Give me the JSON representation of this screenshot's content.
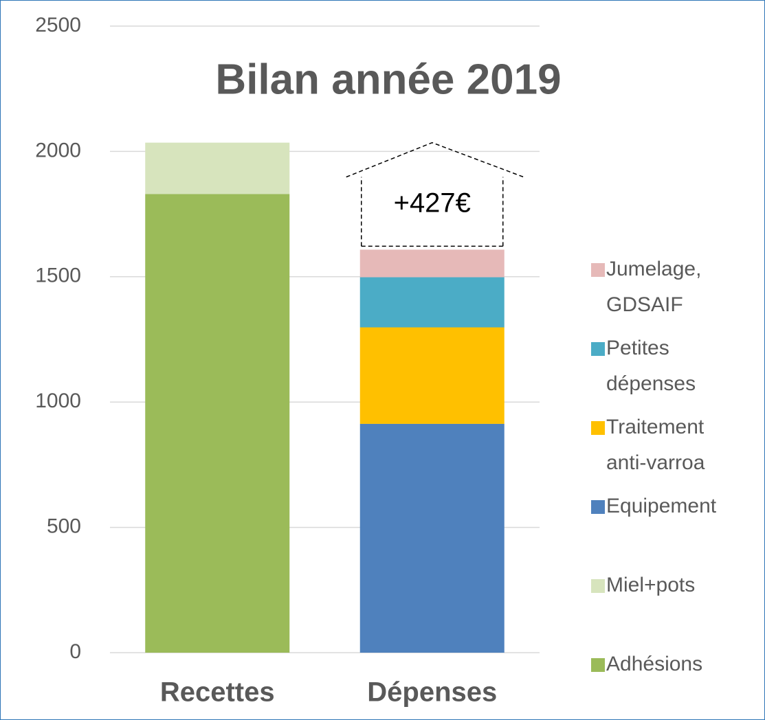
{
  "chart_data": {
    "type": "stacked_bar",
    "title": "Bilan année 2019",
    "categories": [
      "Recettes",
      "Dépenses"
    ],
    "series": [
      {
        "name": "Adhésions",
        "color": "#9bbb59",
        "values": [
          1830,
          null
        ]
      },
      {
        "name": "Miel+pots",
        "color": "#d7e4bd",
        "values": [
          205,
          null
        ]
      },
      {
        "name": "Equipement",
        "color": "#4f81bd",
        "values": [
          null,
          913
        ]
      },
      {
        "name": "Traitement anti-varroa",
        "color": "#ffc000",
        "values": [
          null,
          385
        ]
      },
      {
        "name": "Petites dépenses",
        "color": "#4bacc6",
        "values": [
          null,
          200
        ]
      },
      {
        "name": "Jumelage, GDSAIF",
        "color": "#e6b9b8",
        "values": [
          null,
          110
        ]
      }
    ],
    "annotation": "+427€",
    "ylim": [
      0,
      2500
    ],
    "yticks": [
      0,
      500,
      1000,
      1500,
      2000,
      2500
    ],
    "grid": true,
    "legend": "right"
  }
}
